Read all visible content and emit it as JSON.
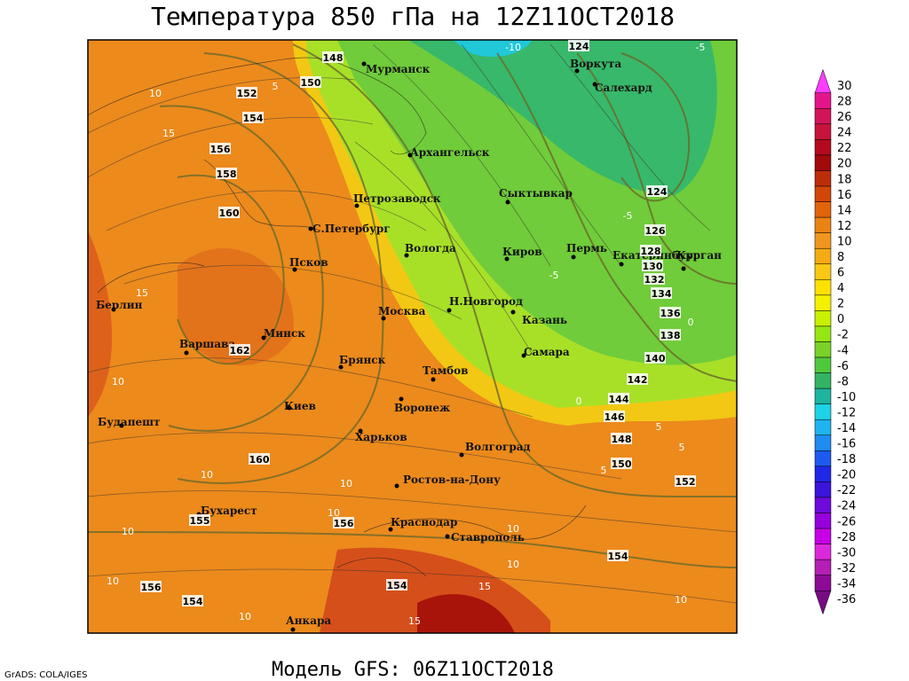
{
  "header": {
    "title": "Температура 850 гПа на 12Z11OCT2018"
  },
  "footer": {
    "model": "Модель GFS: 06Z11OCT2018",
    "credit": "GrADS: COLA/IGES"
  },
  "cities": [
    "Мурманск",
    "Архангельск",
    "Воркута",
    "Салехард",
    "Сыктывкар",
    "Петрозаводск",
    "С.Петербург",
    "Вологда",
    "Киров",
    "Пермь",
    "Екатеринбург",
    "Курган",
    "Псков",
    "Москва",
    "Н.Новгород",
    "Казань",
    "Берлин",
    "Варшава",
    "Минск",
    "Брянск",
    "Тамбов",
    "Самара",
    "Воронеж",
    "Киев",
    "Харьков",
    "Будапешт",
    "Волгоград",
    "Ростов-на-Дону",
    "Бухарест",
    "Краснодар",
    "Ставрополь",
    "Анкара"
  ],
  "height_labels": [
    148,
    124,
    152,
    150,
    154,
    156,
    158,
    160,
    162,
    160,
    155,
    156,
    156,
    154,
    154,
    124,
    126,
    128,
    130,
    132,
    134,
    136,
    138,
    140,
    142,
    144,
    146,
    148,
    150,
    152,
    154
  ],
  "temperature_labels": [
    10,
    5,
    15,
    10,
    10,
    10,
    10,
    10,
    10,
    15,
    15,
    10,
    10,
    5,
    5,
    5,
    0,
    0,
    -5,
    -5,
    -5,
    -10,
    10,
    10,
    15
  ],
  "colorbar": {
    "ticks": [
      30,
      28,
      26,
      24,
      22,
      20,
      18,
      16,
      14,
      12,
      10,
      8,
      6,
      4,
      2,
      0,
      -2,
      -4,
      -6,
      -8,
      -10,
      -12,
      -14,
      -16,
      -18,
      -20,
      -22,
      -24,
      -26,
      -28,
      -30,
      -32,
      -34,
      -36
    ],
    "colors": [
      "#ff3cff",
      "#e6148c",
      "#d2145a",
      "#c8143c",
      "#b40a1e",
      "#a00a0a",
      "#be2d0a",
      "#d2460a",
      "#e1640a",
      "#eb8214",
      "#f0961e",
      "#f5aa14",
      "#fac814",
      "#ffe100",
      "#f5f000",
      "#c8f000",
      "#96e614",
      "#78d228",
      "#50c83c",
      "#32b464",
      "#1eb4a0",
      "#1ed2e6",
      "#1eb4f0",
      "#1e8cf0",
      "#1e5af0",
      "#1e28e6",
      "#3c14dc",
      "#6e0adc",
      "#9600dc",
      "#c800e6",
      "#dc28dc",
      "#b41eb4",
      "#8c0a96",
      "#780a82"
    ]
  }
}
